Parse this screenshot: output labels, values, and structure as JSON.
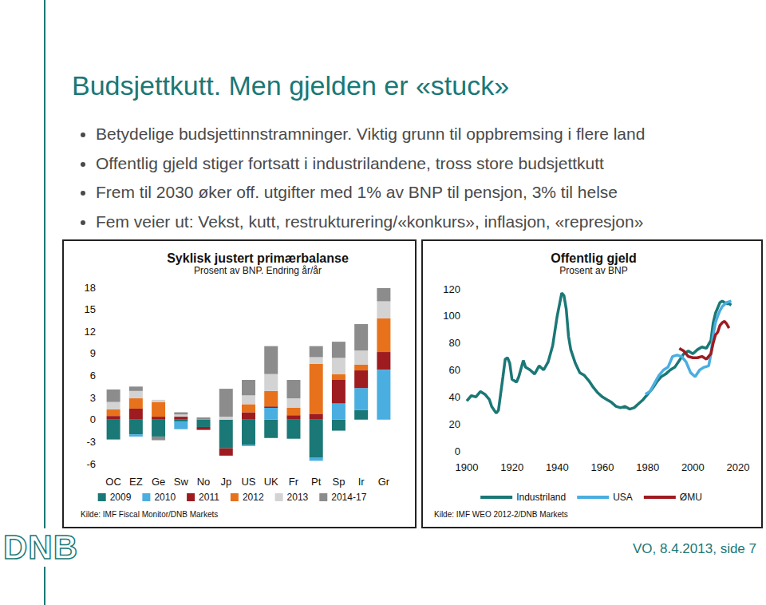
{
  "slide": {
    "title": "Budsjettkutt. Men gjelden er «stuck»",
    "bullets": [
      "Betydelige budsjettinnstramninger. Viktig grunn til oppbremsing i flere land",
      "Offentlig gjeld stiger fortsatt i industrilandene, tross store budsjettkutt",
      "Frem til 2030 øker off. utgifter med 1% av BNP til pensjon, 3% til helse",
      "Fem veier ut: Vekst, kutt, restrukturering/«konkurs», inflasjon, «represjon»"
    ],
    "logo": "DNB",
    "footer": "VO, 8.4.2013, side 7"
  },
  "chart_data": [
    {
      "type": "bar",
      "title": "Syklisk justert primærbalanse",
      "subtitle": "Prosent av BNP. Endring år/år",
      "annotations": [
        "Kilde: IMF Fiscal Monitor/DNB Markets"
      ],
      "categories": [
        "OC",
        "EZ",
        "Ge",
        "Sw",
        "No",
        "Jp",
        "US",
        "UK",
        "Fr",
        "Pt",
        "Sp",
        "Ir",
        "Gr"
      ],
      "series": [
        {
          "name": "2009",
          "color": "#1a7876",
          "values": [
            -2.7,
            -2.0,
            -2.3,
            -0.3,
            -1.0,
            -3.9,
            -3.4,
            -2.5,
            -2.6,
            -5.2,
            -1.5,
            1.3,
            0
          ]
        },
        {
          "name": "2010",
          "color": "#4aaee0",
          "values": [
            0,
            -0.3,
            0,
            -1.0,
            0,
            0,
            -0.2,
            1.6,
            0,
            -0.4,
            2.2,
            3.0,
            6.8
          ]
        },
        {
          "name": "2011",
          "color": "#9e1b20",
          "values": [
            0.5,
            1.5,
            0.4,
            0.4,
            -0.4,
            -1.0,
            1.0,
            0.2,
            0.6,
            0.8,
            3.2,
            2.4,
            2.4
          ]
        },
        {
          "name": "2012",
          "color": "#e8721c",
          "values": [
            0.9,
            1.4,
            2.0,
            0,
            0,
            0,
            1.1,
            2.1,
            1.0,
            6.8,
            0.8,
            0.8,
            4.6
          ]
        },
        {
          "name": "2013",
          "color": "#d3d3d3",
          "values": [
            1.0,
            1.0,
            0.3,
            0.3,
            0,
            0.4,
            1.2,
            2.3,
            1.3,
            0.9,
            2.2,
            1.9,
            2.3
          ]
        },
        {
          "name": "2014-17",
          "color": "#8c8c8c",
          "values": [
            1.7,
            0.6,
            -0.5,
            0.3,
            0.3,
            3.8,
            2.1,
            3.8,
            2.5,
            1.5,
            2.2,
            3.6,
            1.8
          ]
        }
      ],
      "stacked": true,
      "ylim": [
        -6,
        18
      ],
      "yticks": [
        -6,
        -3,
        0,
        3,
        6,
        9,
        12,
        15,
        18
      ],
      "grid": false,
      "legend": "bottom"
    },
    {
      "type": "line",
      "title": "Offentlig gjeld",
      "subtitle": "Prosent av BNP",
      "annotations": [
        "Kilde: IMF WEO 2012-2/DNB Markets"
      ],
      "series": [
        {
          "name": "Industriland",
          "color": "#1a7876",
          "x": [
            1900,
            1902,
            1904,
            1906,
            1908,
            1910,
            1911,
            1913,
            1914,
            1916,
            1917,
            1918,
            1919,
            1920,
            1922,
            1923,
            1925,
            1926,
            1928,
            1930,
            1932,
            1934,
            1936,
            1938,
            1940,
            1942,
            1943,
            1944,
            1945,
            1946,
            1948,
            1950,
            1952,
            1954,
            1956,
            1958,
            1960,
            1962,
            1964,
            1966,
            1968,
            1970,
            1972,
            1974,
            1976,
            1978,
            1980,
            1982,
            1984,
            1986,
            1988,
            1990,
            1992,
            1994,
            1996,
            1998,
            2000,
            2002,
            2004,
            2006,
            2008,
            2009,
            2010,
            2011,
            2012,
            2013,
            2014,
            2015,
            2016,
            2017
          ],
          "values": [
            37,
            41,
            40,
            44,
            42,
            38,
            33,
            28,
            30,
            55,
            68,
            69,
            65,
            53,
            51,
            55,
            67,
            62,
            60,
            57,
            63,
            60,
            66,
            78,
            100,
            117,
            115,
            105,
            85,
            75,
            65,
            58,
            56,
            52,
            47,
            43,
            40,
            38,
            36,
            33,
            32,
            33,
            31,
            32,
            35,
            38,
            42,
            46,
            51,
            55,
            57,
            60,
            62,
            67,
            72,
            74,
            72,
            75,
            77,
            76,
            82,
            95,
            102,
            106,
            110,
            111,
            110,
            109,
            109,
            108
          ]
        },
        {
          "name": "USA",
          "color": "#4aaee0",
          "x": [
            1979,
            1981,
            1983,
            1985,
            1987,
            1989,
            1991,
            1993,
            1995,
            1997,
            1999,
            2001,
            2003,
            2005,
            2007,
            2008,
            2009,
            2010,
            2011,
            2012,
            2013,
            2015,
            2017
          ],
          "values": [
            42,
            44,
            50,
            56,
            60,
            62,
            70,
            71,
            70,
            66,
            58,
            55,
            60,
            62,
            63,
            72,
            86,
            95,
            100,
            104,
            107,
            110,
            111
          ]
        },
        {
          "name": "ØMU",
          "color": "#9e1b20",
          "x": [
            1994,
            1996,
            1998,
            2000,
            2002,
            2004,
            2006,
            2008,
            2009,
            2010,
            2011,
            2012,
            2013,
            2014,
            2015,
            2016
          ],
          "values": [
            76,
            74,
            70,
            69,
            69,
            70,
            68,
            72,
            80,
            86,
            88,
            93,
            95,
            96,
            94,
            91
          ]
        }
      ],
      "xlim": [
        1900,
        2020
      ],
      "xticks": [
        1900,
        1920,
        1940,
        1960,
        1980,
        2000,
        2020
      ],
      "ylim": [
        0,
        120
      ],
      "yticks": [
        0,
        20,
        40,
        60,
        80,
        100,
        120
      ],
      "grid": false,
      "legend": "bottom"
    }
  ]
}
